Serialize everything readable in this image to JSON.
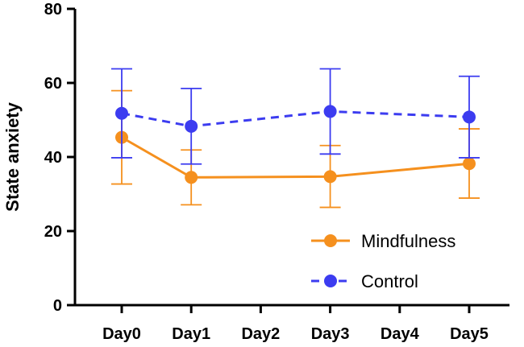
{
  "chart_data": {
    "type": "line",
    "title": "",
    "xlabel": "",
    "ylabel": "State anxiety",
    "categories": [
      "Day0",
      "Day1",
      "Day2",
      "Day3",
      "Day4",
      "Day5"
    ],
    "ylim": [
      0,
      80
    ],
    "yticks": [
      "0",
      "20",
      "40",
      "60",
      "80"
    ],
    "grid": false,
    "legend_position": "bottom-right",
    "series": [
      {
        "name": "Mindfulness",
        "color": "#f5901e",
        "line_style": "solid",
        "x": [
          "Day0",
          "Day1",
          "Day3",
          "Day5"
        ],
        "values": [
          45.3,
          34.5,
          34.7,
          38.2
        ],
        "error_low": [
          32.7,
          27.1,
          26.4,
          28.9
        ],
        "error_high": [
          57.9,
          41.9,
          43.1,
          47.6
        ]
      },
      {
        "name": "Control",
        "color": "#3c3cf0",
        "line_style": "dashed",
        "x": [
          "Day0",
          "Day1",
          "Day3",
          "Day5"
        ],
        "values": [
          51.8,
          48.3,
          52.3,
          50.8
        ],
        "error_low": [
          39.8,
          38.1,
          40.8,
          39.8
        ],
        "error_high": [
          63.8,
          58.5,
          63.8,
          61.8
        ]
      }
    ]
  }
}
